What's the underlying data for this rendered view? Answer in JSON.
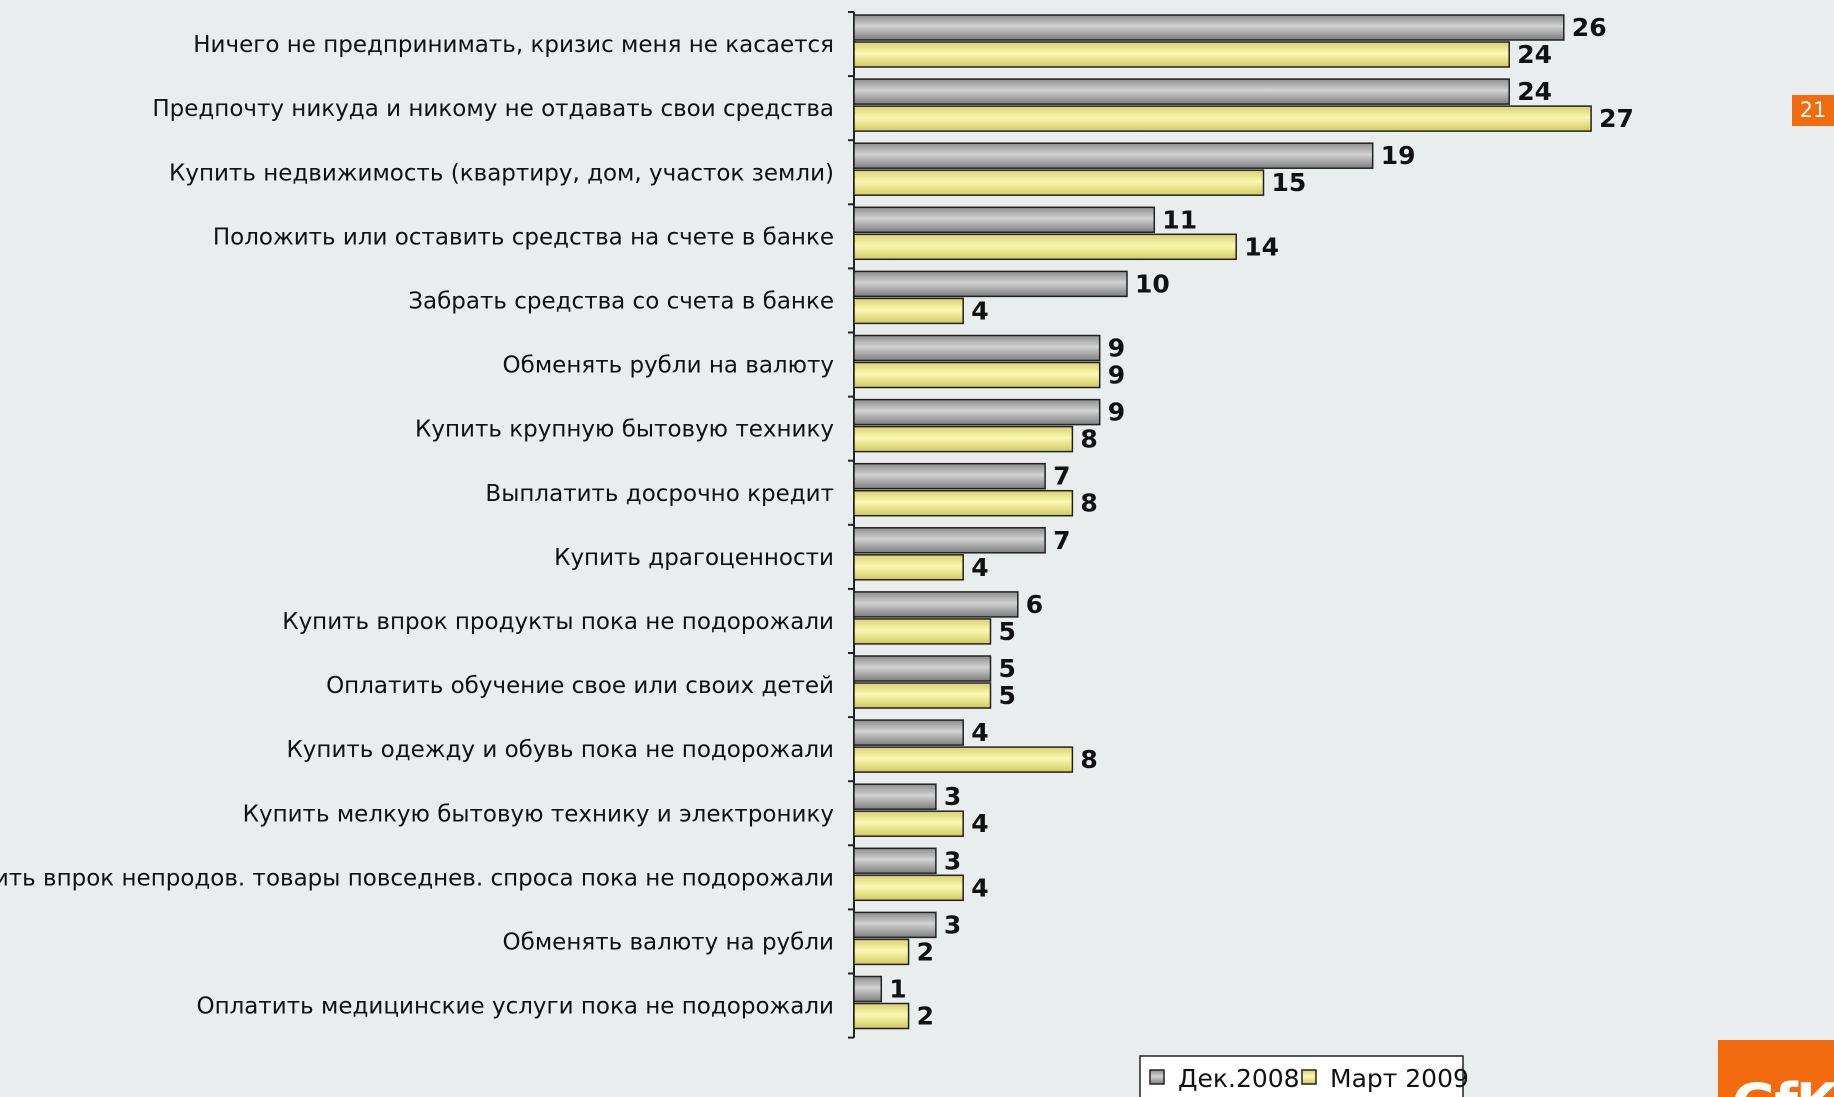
{
  "page_number": "21",
  "logo_text": "GfK",
  "colors": {
    "background": "#e9edee",
    "series_dec": "#a7a7a7",
    "series_mar": "#f3ef8e",
    "accent": "#f26c0f"
  },
  "chart_data": {
    "type": "bar",
    "orientation": "horizontal",
    "categories": [
      "Ничего не предпринимать, кризис меня не касается",
      "Предпочту никуда и никому не отдавать свои средства",
      "Купить недвижимость (квартиру, дом, участок земли)",
      "Положить или оставить средства на счете в банке",
      "Забрать средства со счета в банке",
      "Обменять рубли на валюту",
      "Купить крупную бытовую технику",
      "Выплатить досрочно кредит",
      "Купить драгоценности",
      "Купить впрок продукты пока не подорожали",
      "Оплатить обучение свое или своих детей",
      "Купить одежду и обувь пока не подорожали",
      "Купить мелкую бытовую технику и электронику",
      "Купить впрок непродов. товары повседнев. спроса пока не подорожали",
      "Обменять валюту на рубли",
      "Оплатить медицинские услуги пока не подорожали"
    ],
    "series": [
      {
        "name": "Дек.2008",
        "values": [
          26,
          24,
          19,
          11,
          10,
          9,
          9,
          7,
          7,
          6,
          5,
          4,
          3,
          3,
          3,
          1
        ]
      },
      {
        "name": "Март 2009",
        "values": [
          24,
          27,
          15,
          14,
          4,
          9,
          8,
          8,
          4,
          5,
          5,
          8,
          4,
          4,
          2,
          2
        ]
      }
    ],
    "xlim": [
      0,
      27
    ],
    "legend_position": "bottom",
    "grid": false
  }
}
